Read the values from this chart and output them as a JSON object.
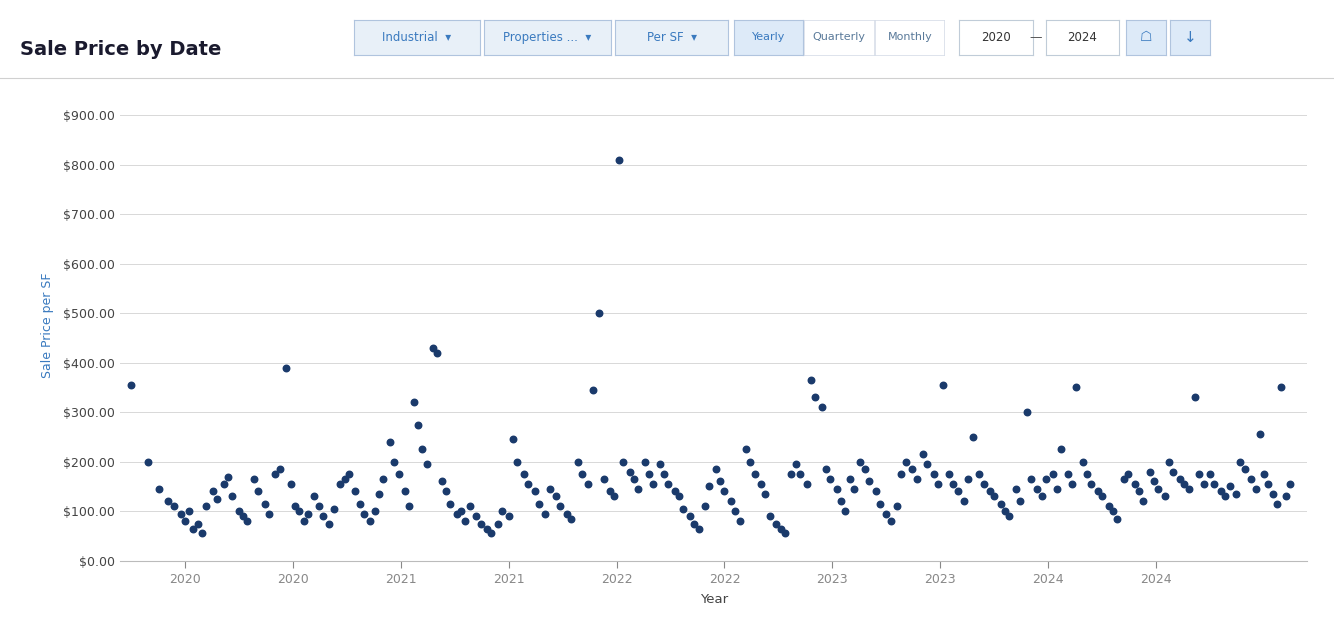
{
  "title": "Sale Price by Date",
  "xlabel": "Year",
  "ylabel": "Sale Price per SF",
  "dot_color": "#1a3a6b",
  "background_color": "#ffffff",
  "grid_color": "#d8d8d8",
  "ylim": [
    0,
    950
  ],
  "yticks": [
    0,
    100,
    200,
    300,
    400,
    500,
    600,
    700,
    800,
    900
  ],
  "xlim": [
    2019.7,
    2025.2
  ],
  "xtick_positions": [
    2020,
    2020.5,
    2021,
    2021.5,
    2022,
    2022.5,
    2023,
    2023.5,
    2024,
    2024.5
  ],
  "xtick_labels": [
    "2020",
    "2020",
    "2021",
    "2021",
    "2022",
    "2022",
    "2023",
    "2023",
    "2024",
    "2024"
  ],
  "header_items": [
    "Industrial",
    "Properties ...",
    "Per SF",
    "Yearly",
    "Quarterly",
    "Monthly",
    "2020",
    "2024"
  ],
  "points": [
    [
      2019.75,
      355
    ],
    [
      2019.83,
      200
    ],
    [
      2019.88,
      145
    ],
    [
      2019.92,
      120
    ],
    [
      2019.95,
      110
    ],
    [
      2019.98,
      95
    ],
    [
      2020.0,
      80
    ],
    [
      2020.02,
      100
    ],
    [
      2020.04,
      65
    ],
    [
      2020.06,
      75
    ],
    [
      2020.08,
      55
    ],
    [
      2020.1,
      110
    ],
    [
      2020.13,
      140
    ],
    [
      2020.15,
      125
    ],
    [
      2020.18,
      155
    ],
    [
      2020.2,
      170
    ],
    [
      2020.22,
      130
    ],
    [
      2020.25,
      100
    ],
    [
      2020.27,
      90
    ],
    [
      2020.29,
      80
    ],
    [
      2020.32,
      165
    ],
    [
      2020.34,
      140
    ],
    [
      2020.37,
      115
    ],
    [
      2020.39,
      95
    ],
    [
      2020.42,
      175
    ],
    [
      2020.44,
      185
    ],
    [
      2020.47,
      390
    ],
    [
      2020.49,
      155
    ],
    [
      2020.51,
      110
    ],
    [
      2020.53,
      100
    ],
    [
      2020.55,
      80
    ],
    [
      2020.57,
      95
    ],
    [
      2020.6,
      130
    ],
    [
      2020.62,
      110
    ],
    [
      2020.64,
      90
    ],
    [
      2020.67,
      75
    ],
    [
      2020.69,
      105
    ],
    [
      2020.72,
      155
    ],
    [
      2020.74,
      165
    ],
    [
      2020.76,
      175
    ],
    [
      2020.79,
      140
    ],
    [
      2020.81,
      115
    ],
    [
      2020.83,
      95
    ],
    [
      2020.86,
      80
    ],
    [
      2020.88,
      100
    ],
    [
      2020.9,
      135
    ],
    [
      2020.92,
      165
    ],
    [
      2020.95,
      240
    ],
    [
      2020.97,
      200
    ],
    [
      2020.99,
      175
    ],
    [
      2021.02,
      140
    ],
    [
      2021.04,
      110
    ],
    [
      2021.06,
      320
    ],
    [
      2021.08,
      275
    ],
    [
      2021.1,
      225
    ],
    [
      2021.12,
      195
    ],
    [
      2021.15,
      430
    ],
    [
      2021.17,
      420
    ],
    [
      2021.19,
      160
    ],
    [
      2021.21,
      140
    ],
    [
      2021.23,
      115
    ],
    [
      2021.26,
      95
    ],
    [
      2021.28,
      100
    ],
    [
      2021.3,
      80
    ],
    [
      2021.32,
      110
    ],
    [
      2021.35,
      90
    ],
    [
      2021.37,
      75
    ],
    [
      2021.4,
      65
    ],
    [
      2021.42,
      55
    ],
    [
      2021.45,
      75
    ],
    [
      2021.47,
      100
    ],
    [
      2021.5,
      90
    ],
    [
      2021.52,
      245
    ],
    [
      2021.54,
      200
    ],
    [
      2021.57,
      175
    ],
    [
      2021.59,
      155
    ],
    [
      2021.62,
      140
    ],
    [
      2021.64,
      115
    ],
    [
      2021.67,
      95
    ],
    [
      2021.69,
      145
    ],
    [
      2021.72,
      130
    ],
    [
      2021.74,
      110
    ],
    [
      2021.77,
      95
    ],
    [
      2021.79,
      85
    ],
    [
      2021.82,
      200
    ],
    [
      2021.84,
      175
    ],
    [
      2021.87,
      155
    ],
    [
      2021.89,
      345
    ],
    [
      2021.92,
      500
    ],
    [
      2021.94,
      165
    ],
    [
      2021.97,
      140
    ],
    [
      2021.99,
      130
    ],
    [
      2022.01,
      810
    ],
    [
      2022.03,
      200
    ],
    [
      2022.06,
      180
    ],
    [
      2022.08,
      165
    ],
    [
      2022.1,
      145
    ],
    [
      2022.13,
      200
    ],
    [
      2022.15,
      175
    ],
    [
      2022.17,
      155
    ],
    [
      2022.2,
      195
    ],
    [
      2022.22,
      175
    ],
    [
      2022.24,
      155
    ],
    [
      2022.27,
      140
    ],
    [
      2022.29,
      130
    ],
    [
      2022.31,
      105
    ],
    [
      2022.34,
      90
    ],
    [
      2022.36,
      75
    ],
    [
      2022.38,
      65
    ],
    [
      2022.41,
      110
    ],
    [
      2022.43,
      150
    ],
    [
      2022.46,
      185
    ],
    [
      2022.48,
      160
    ],
    [
      2022.5,
      140
    ],
    [
      2022.53,
      120
    ],
    [
      2022.55,
      100
    ],
    [
      2022.57,
      80
    ],
    [
      2022.6,
      225
    ],
    [
      2022.62,
      200
    ],
    [
      2022.64,
      175
    ],
    [
      2022.67,
      155
    ],
    [
      2022.69,
      135
    ],
    [
      2022.71,
      90
    ],
    [
      2022.74,
      75
    ],
    [
      2022.76,
      65
    ],
    [
      2022.78,
      55
    ],
    [
      2022.81,
      175
    ],
    [
      2022.83,
      195
    ],
    [
      2022.85,
      175
    ],
    [
      2022.88,
      155
    ],
    [
      2022.9,
      365
    ],
    [
      2022.92,
      330
    ],
    [
      2022.95,
      310
    ],
    [
      2022.97,
      185
    ],
    [
      2022.99,
      165
    ],
    [
      2023.02,
      145
    ],
    [
      2023.04,
      120
    ],
    [
      2023.06,
      100
    ],
    [
      2023.08,
      165
    ],
    [
      2023.1,
      145
    ],
    [
      2023.13,
      200
    ],
    [
      2023.15,
      185
    ],
    [
      2023.17,
      160
    ],
    [
      2023.2,
      140
    ],
    [
      2023.22,
      115
    ],
    [
      2023.25,
      95
    ],
    [
      2023.27,
      80
    ],
    [
      2023.3,
      110
    ],
    [
      2023.32,
      175
    ],
    [
      2023.34,
      200
    ],
    [
      2023.37,
      185
    ],
    [
      2023.39,
      165
    ],
    [
      2023.42,
      215
    ],
    [
      2023.44,
      195
    ],
    [
      2023.47,
      175
    ],
    [
      2023.49,
      155
    ],
    [
      2023.51,
      355
    ],
    [
      2023.54,
      175
    ],
    [
      2023.56,
      155
    ],
    [
      2023.58,
      140
    ],
    [
      2023.61,
      120
    ],
    [
      2023.63,
      165
    ],
    [
      2023.65,
      250
    ],
    [
      2023.68,
      175
    ],
    [
      2023.7,
      155
    ],
    [
      2023.73,
      140
    ],
    [
      2023.75,
      130
    ],
    [
      2023.78,
      115
    ],
    [
      2023.8,
      100
    ],
    [
      2023.82,
      90
    ],
    [
      2023.85,
      145
    ],
    [
      2023.87,
      120
    ],
    [
      2023.9,
      300
    ],
    [
      2023.92,
      165
    ],
    [
      2023.95,
      145
    ],
    [
      2023.97,
      130
    ],
    [
      2023.99,
      165
    ],
    [
      2024.02,
      175
    ],
    [
      2024.04,
      145
    ],
    [
      2024.06,
      225
    ],
    [
      2024.09,
      175
    ],
    [
      2024.11,
      155
    ],
    [
      2024.13,
      350
    ],
    [
      2024.16,
      200
    ],
    [
      2024.18,
      175
    ],
    [
      2024.2,
      155
    ],
    [
      2024.23,
      140
    ],
    [
      2024.25,
      130
    ],
    [
      2024.28,
      110
    ],
    [
      2024.3,
      100
    ],
    [
      2024.32,
      85
    ],
    [
      2024.35,
      165
    ],
    [
      2024.37,
      175
    ],
    [
      2024.4,
      155
    ],
    [
      2024.42,
      140
    ],
    [
      2024.44,
      120
    ],
    [
      2024.47,
      180
    ],
    [
      2024.49,
      160
    ],
    [
      2024.51,
      145
    ],
    [
      2024.54,
      130
    ],
    [
      2024.56,
      200
    ],
    [
      2024.58,
      180
    ],
    [
      2024.61,
      165
    ],
    [
      2024.63,
      155
    ],
    [
      2024.65,
      145
    ],
    [
      2024.68,
      330
    ],
    [
      2024.7,
      175
    ],
    [
      2024.72,
      155
    ],
    [
      2024.75,
      175
    ],
    [
      2024.77,
      155
    ],
    [
      2024.8,
      140
    ],
    [
      2024.82,
      130
    ],
    [
      2024.84,
      150
    ],
    [
      2024.87,
      135
    ],
    [
      2024.89,
      200
    ],
    [
      2024.91,
      185
    ],
    [
      2024.94,
      165
    ],
    [
      2024.96,
      145
    ],
    [
      2024.98,
      255
    ],
    [
      2025.0,
      175
    ],
    [
      2025.02,
      155
    ],
    [
      2025.04,
      135
    ],
    [
      2025.06,
      115
    ],
    [
      2025.08,
      350
    ],
    [
      2025.1,
      130
    ],
    [
      2025.12,
      155
    ]
  ]
}
